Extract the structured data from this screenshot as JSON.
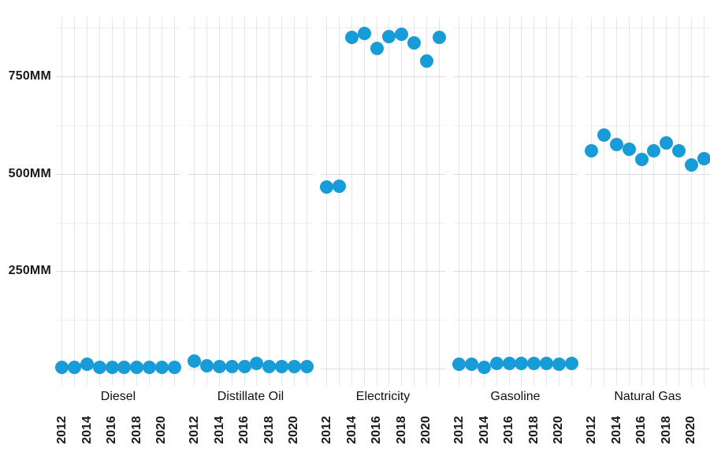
{
  "chart_data": {
    "type": "scatter",
    "title": "",
    "unit": "MM",
    "facets": [
      "Diesel",
      "Distillate Oil",
      "Electricity",
      "Gasoline",
      "Natural Gas"
    ],
    "years": [
      2012,
      2013,
      2014,
      2015,
      2016,
      2017,
      2018,
      2019,
      2020,
      2021
    ],
    "x_tick_labels": [
      "2012",
      "2014",
      "2016",
      "2018",
      "2020"
    ],
    "series": [
      {
        "name": "Diesel",
        "values": [
          4,
          4,
          12,
          4,
          4,
          4,
          4,
          4,
          4,
          4
        ]
      },
      {
        "name": "Distillate Oil",
        "values": [
          20,
          8,
          6,
          6,
          6,
          14,
          6,
          6,
          5,
          5
        ]
      },
      {
        "name": "Electricity",
        "values": [
          466,
          467,
          850,
          861,
          822,
          853,
          859,
          836,
          789,
          850
        ]
      },
      {
        "name": "Gasoline",
        "values": [
          12,
          12,
          4,
          13,
          13,
          13,
          13,
          13,
          12,
          13
        ]
      },
      {
        "name": "Natural Gas",
        "values": [
          558,
          599,
          575,
          562,
          536,
          558,
          579,
          558,
          522,
          538
        ]
      }
    ],
    "y_ticks": [
      {
        "value": 250,
        "label": "250MM"
      },
      {
        "value": 500,
        "label": "500MM"
      },
      {
        "value": 750,
        "label": "750MM"
      }
    ],
    "y_gridlines_major": [
      0,
      250,
      500,
      750
    ],
    "y_gridlines_minor": [
      125,
      375,
      625,
      875
    ],
    "ylim": [
      0,
      900
    ],
    "grid": "on",
    "legend": "none",
    "colors": {
      "dot": "#189cd8",
      "grid_major": "#dddddd",
      "grid_minor": "#f0f0f0",
      "grid_vertical": "#e4e4e4",
      "text": "#1a1a1a"
    }
  }
}
